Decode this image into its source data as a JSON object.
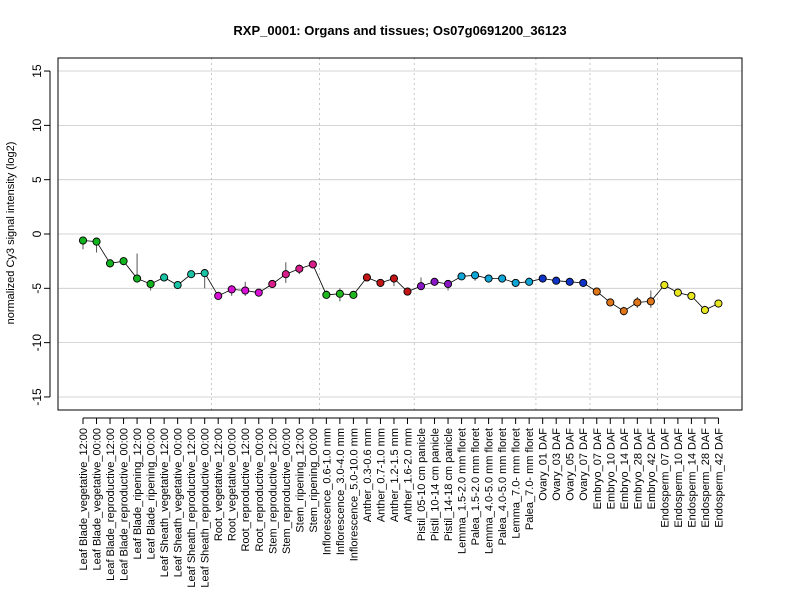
{
  "chart_data": {
    "type": "line",
    "title": "RXP_0001: Organs and tissues; Os07g0691200_36123",
    "ylabel": "normalized Cy3 signal intensity (log2)",
    "xlabel": "",
    "ylim": [
      -16.2,
      16.2
    ],
    "yticks": [
      -15,
      -10,
      -5,
      0,
      5,
      10,
      15
    ],
    "grid": "horizontal lines at y ticks; dotted vertical separators between tissue groups",
    "categories": [
      "Leaf Blade_vegetative_12:00",
      "Leaf Blade_vegetative_00:00",
      "Leaf Blade_reproductive_12:00",
      "Leaf Blade_reproductive_00:00",
      "Leaf Blade_ripening_12:00",
      "Leaf Blade_ripening_00:00",
      "Leaf Sheath_vegetative_12:00",
      "Leaf Sheath_vegetative_00:00",
      "Leaf Sheath_reproductive_12:00",
      "Leaf Sheath_reproductive_00:00",
      "Root_vegetative_12:00",
      "Root_vegetative_00:00",
      "Root_reproductive_12:00",
      "Root_reproductive_00:00",
      "Stem_reproductive_12:00",
      "Stem_reproductive_00:00",
      "Stem_ripening_12:00",
      "Stem_ripening_00:00",
      "Inflorescence_0.6-1.0 mm",
      "Inflorescence_3.0-4.0 mm",
      "Inflorescence_5.0-10.0 mm",
      "Anther_0.3-0.6 mm",
      "Anther_0.7-1.0 mm",
      "Anther_1.2-1.5 mm",
      "Anther_1.6-2.0 mm",
      "Pistil_05-10 cm panicle",
      "Pistil_10-14 cm panicle",
      "Pistil_14-18 cm panicle",
      "Lemma_1.5-2.0 mm floret",
      "Palea_1.5-2.0 mm floret",
      "Lemma_4.0-5.0 mm floret",
      "Palea_4.0-5.0 mm floret",
      "Lemma_7.0- mm floret",
      "Palea_7.0- mm floret",
      "Ovary_01 DAF",
      "Ovary_03 DAF",
      "Ovary_05 DAF",
      "Ovary_07 DAF",
      "Embryo_07 DAF",
      "Embryo_10 DAF",
      "Embryo_14 DAF",
      "Embryo_28 DAF",
      "Embryo_42 DAF",
      "Endosperm_07 DAF",
      "Endosperm_10 DAF",
      "Endosperm_14 DAF",
      "Endosperm_28 DAF",
      "Endosperm_42 DAF"
    ],
    "values": [
      -0.6,
      -0.7,
      -2.7,
      -2.5,
      -4.1,
      -4.6,
      -4.0,
      -4.7,
      -3.7,
      -3.6,
      -5.7,
      -5.1,
      -5.2,
      -5.4,
      -4.6,
      -3.7,
      -3.2,
      -2.8,
      -5.6,
      -5.5,
      -5.6,
      -4.0,
      -4.5,
      -4.1,
      -5.3,
      -4.8,
      -4.4,
      -4.6,
      -3.9,
      -3.8,
      -4.1,
      -4.1,
      -4.5,
      -4.4,
      -4.1,
      -4.3,
      -4.4,
      -4.5,
      -5.3,
      -6.3,
      -7.1,
      -6.3,
      -6.2,
      -4.7,
      -5.4,
      -5.7,
      -7.0,
      -6.4
    ],
    "error_low": [
      -1.4,
      -1.7,
      -3.1,
      -2.7,
      -4.4,
      -5.2,
      -4.1,
      -4.9,
      -3.9,
      -5.0,
      -5.9,
      -5.7,
      -5.7,
      -5.6,
      -4.8,
      -4.5,
      -3.7,
      -2.9,
      -5.9,
      -6.2,
      -5.8,
      -4.2,
      -4.7,
      -4.8,
      -5.5,
      -5.1,
      -4.5,
      -5.2,
      -4.1,
      -4.3,
      -4.2,
      -4.2,
      -4.8,
      -4.6,
      -4.2,
      -4.4,
      -4.6,
      -4.7,
      -5.4,
      -6.5,
      -7.5,
      -6.8,
      -6.8,
      -4.8,
      -5.6,
      -6.0,
      -7.3,
      -6.6
    ],
    "error_high": [
      -0.3,
      -0.6,
      -2.5,
      -2.3,
      -1.8,
      -4.3,
      -3.9,
      -4.5,
      -3.5,
      -3.4,
      -5.3,
      -4.7,
      -4.4,
      -5.2,
      -4.3,
      -2.6,
      -2.8,
      -2.5,
      -5.2,
      -5.0,
      -5.3,
      -3.9,
      -4.4,
      -3.7,
      -5.1,
      -4.0,
      -4.2,
      -4.4,
      -3.6,
      -3.5,
      -3.9,
      -3.9,
      -4.3,
      -4.0,
      -3.9,
      -4.1,
      -4.2,
      -4.3,
      -5.0,
      -6.1,
      -6.7,
      -5.8,
      -5.2,
      -4.5,
      -5.0,
      -5.4,
      -6.6,
      -6.2
    ],
    "group_boundaries_after_index": [
      9,
      17,
      24,
      33,
      37,
      42
    ],
    "colors": {
      "leaf": "#11b31f",
      "sheath": "#19c3a3",
      "root": "#d80fd5",
      "stem": "#d81e8a",
      "inflorescence": "#1fb81e",
      "anther": "#c21515",
      "pistil": "#8a17c4",
      "lemma_palea": "#0ea6d6",
      "ovary": "#1034c8",
      "embryo": "#e0761a",
      "endosperm": "#e8e61e",
      "line": "#000000",
      "grid": "#c8c8c8",
      "separator": "#bcbcbc"
    },
    "point_color_keys": [
      "leaf",
      "leaf",
      "leaf",
      "leaf",
      "leaf",
      "leaf",
      "sheath",
      "sheath",
      "sheath",
      "sheath",
      "root",
      "root",
      "root",
      "root",
      "stem",
      "stem",
      "stem",
      "stem",
      "inflorescence",
      "inflorescence",
      "inflorescence",
      "anther",
      "anther",
      "anther",
      "anther",
      "pistil",
      "pistil",
      "pistil",
      "lemma_palea",
      "lemma_palea",
      "lemma_palea",
      "lemma_palea",
      "lemma_palea",
      "lemma_palea",
      "ovary",
      "ovary",
      "ovary",
      "ovary",
      "embryo",
      "embryo",
      "embryo",
      "embryo",
      "embryo",
      "endosperm",
      "endosperm",
      "endosperm",
      "endosperm",
      "endosperm"
    ]
  }
}
